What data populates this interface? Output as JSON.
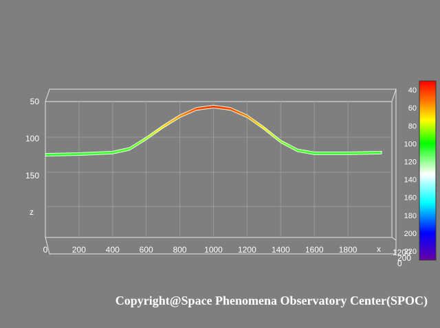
{
  "chart_data": {
    "type": "area",
    "title": "",
    "view": "3D surface viewed from the front (x along horizontal, z along vertical)",
    "x_ticks": [
      0,
      200,
      400,
      600,
      800,
      1000,
      1200,
      1400,
      1600,
      1800
    ],
    "x_label": "x",
    "z_ticks": [
      50,
      100,
      150
    ],
    "z_label": "z",
    "z_axis_reversed": true,
    "y_ticks_partial": [
      "1200",
      "200",
      "0"
    ],
    "grid": true,
    "series": [
      {
        "x": [
          0,
          200,
          400,
          500,
          600,
          700,
          800,
          900,
          1000,
          1100,
          1200,
          1300,
          1400,
          1500,
          1600,
          1800,
          2000
        ],
        "z": [
          120,
          119,
          117,
          112,
          98,
          82,
          68,
          58,
          55,
          58,
          68,
          84,
          102,
          114,
          118,
          118,
          117
        ]
      }
    ],
    "colorbar": {
      "ticks": [
        40,
        60,
        80,
        100,
        120,
        140,
        160,
        180,
        200,
        220
      ],
      "min": 30,
      "max": 230,
      "gradient": [
        "#ff0000",
        "#ff8000",
        "#ffff00",
        "#00ff00",
        "#ffffff",
        "#00ffff",
        "#0000ff",
        "#6a00a8"
      ]
    }
  },
  "copyright": "Copyright@Space Phenomena Observatory Center(SPOC)"
}
